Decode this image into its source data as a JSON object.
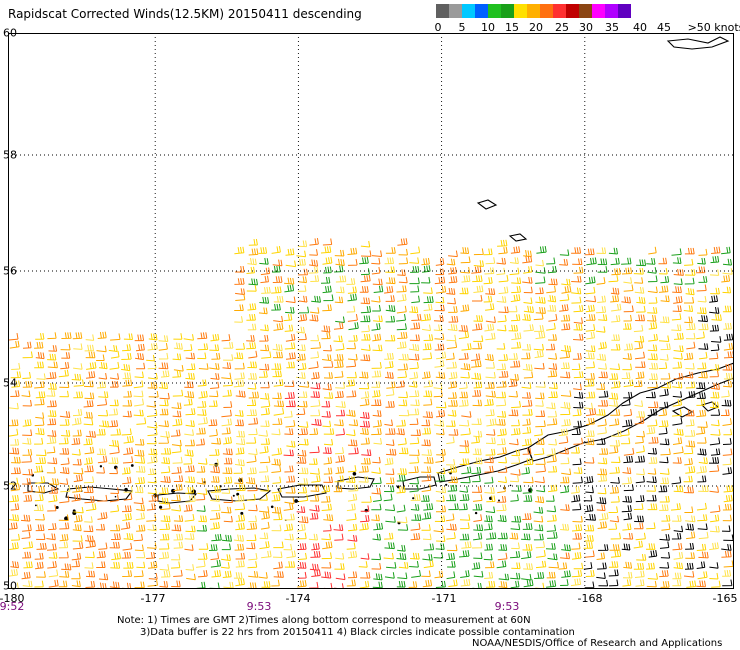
{
  "title": "Rapidscat Corrected Winds(12.5KM) 20150411 descending",
  "colorbar": {
    "swatches": [
      "#606060",
      "#9a9a9a",
      "#00c8ff",
      "#0060ff",
      "#20c020",
      "#19a019",
      "#ffe000",
      "#ffb000",
      "#ff7010",
      "#ff3030",
      "#c00000",
      "#8b4513",
      "#ff00ff",
      "#b000ff",
      "#6000c0"
    ],
    "labels": [
      "0",
      "5",
      "10",
      "15",
      "20",
      "25",
      "30",
      "35",
      "40",
      "45",
      ">50 knots"
    ]
  },
  "y_ticks": [
    "60",
    "58",
    "56",
    "54",
    "52",
    "50"
  ],
  "x_ticks": [
    "-180",
    "-177",
    "-174",
    "-171",
    "-168",
    "-165"
  ],
  "time_ticks": [
    "9:52",
    "9:53",
    "9:53"
  ],
  "notes": {
    "line1": "Note: 1) Times are GMT 2)Times along bottom correspond to measurement at 60N",
    "line2": "3)Data buffer is 22 hrs from 20150411 4) Black circles indicate possible contamination",
    "line3": "NOAA/NESDIS/Office of Research and Applications"
  }
}
